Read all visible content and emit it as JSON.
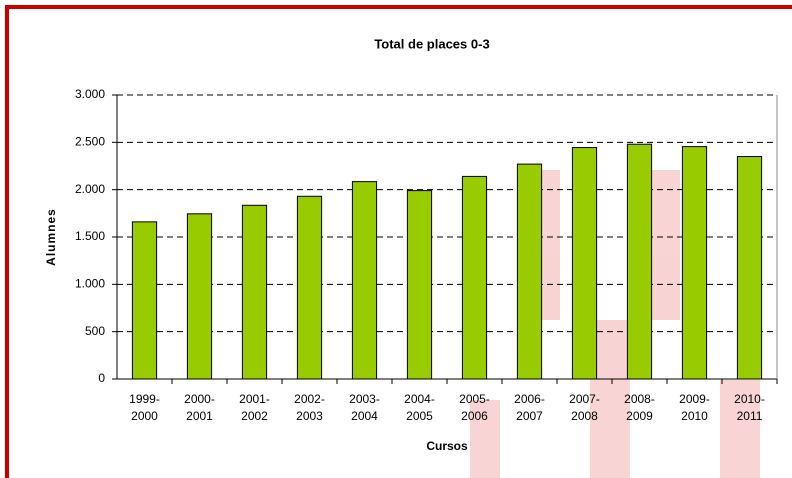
{
  "chart_data": {
    "type": "bar",
    "title": "Total de places 0-3",
    "x_label": "Cursos",
    "y_label": "Alumnes",
    "categories": [
      "1999-2000",
      "2000-2001",
      "2001-2002",
      "2002-2003",
      "2003-2004",
      "2004-2005",
      "2005-2006",
      "2006-2007",
      "2007-2008",
      "2008-2009",
      "2009-2010",
      "2010-2011"
    ],
    "values": [
      1660,
      1745,
      1835,
      1930,
      2085,
      1990,
      2140,
      2270,
      2445,
      2480,
      2455,
      2350
    ],
    "color": "#99cc00",
    "ylim": [
      0,
      3000
    ],
    "yticks": [
      0,
      500,
      {
        "value": 1000,
        "label": "1.000"
      },
      {
        "value": 1500,
        "label": "1.500"
      },
      {
        "value": 2000,
        "label": "2.000"
      },
      {
        "value": 2500,
        "label": "2.500"
      },
      {
        "value": 3000,
        "label": "3.000"
      }
    ],
    "grid": true
  }
}
